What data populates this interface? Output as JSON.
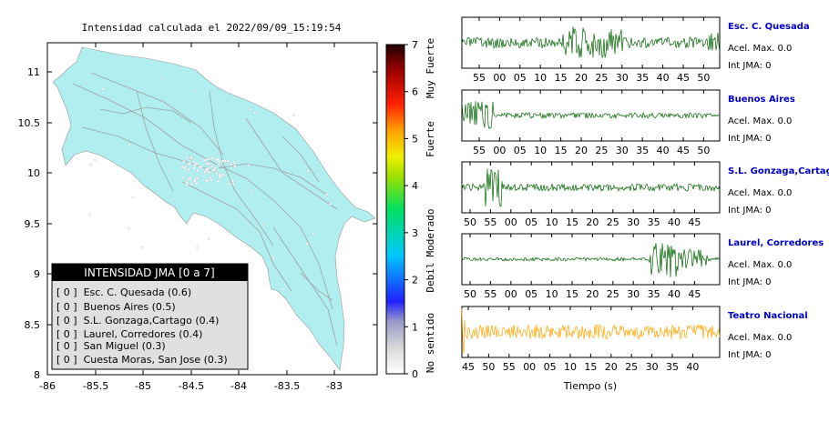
{
  "title": "Intensidad calculada el 2022/09/09_15:19:54",
  "map": {
    "x_ticks": [
      "-86",
      "-85.5",
      "-85",
      "-84.5",
      "-84",
      "-83.5",
      "-83"
    ],
    "y_ticks": [
      "11",
      "10.5",
      "10",
      "9.5",
      "9",
      "8.5",
      "8"
    ],
    "land_color": "#b0eef0",
    "legend": {
      "header": "INTENSIDAD JMA [0 a 7]",
      "items": [
        "[ 0 ]  Esc. C. Quesada (0.6)",
        "[ 0 ]  Buenos Aires (0.5)",
        "[ 0 ]  S.L. Gonzaga,Cartago (0.4)",
        "[ 0 ]  Laurel, Corredores (0.4)",
        "[ 0 ]  San Miguel (0.3)",
        "[ 0 ]  Cuesta Moras, San Jose (0.3)"
      ]
    }
  },
  "colorbar": {
    "ticks": [
      "7",
      "6",
      "5",
      "4",
      "3",
      "2",
      "1",
      "0"
    ],
    "labels": [
      "Muy Fuerte",
      "Fuerte",
      "Moderado",
      "Debil",
      "No sentido"
    ]
  },
  "waveforms": {
    "xlabel": "Tiempo (s)",
    "panels": [
      {
        "station": "Esc. C. Quesada",
        "accel": "Acel. Max. 0.0",
        "int": "Int JMA: 0",
        "ticks": [
          "55",
          "00",
          "05",
          "10",
          "15",
          "20",
          "25",
          "30",
          "35",
          "40",
          "45",
          "50"
        ],
        "color": "#006400"
      },
      {
        "station": "Buenos Aires",
        "accel": "Acel. Max. 0.0",
        "int": "Int JMA: 0",
        "ticks": [
          "55",
          "00",
          "05",
          "10",
          "15",
          "20",
          "25",
          "30",
          "35",
          "40",
          "45",
          "50"
        ],
        "color": "#006400"
      },
      {
        "station": "S.L. Gonzaga,Cartago",
        "accel": "Acel. Max. 0.0",
        "int": "Int JMA: 0",
        "ticks": [
          "50",
          "55",
          "00",
          "05",
          "10",
          "15",
          "20",
          "25",
          "30",
          "35",
          "40",
          "45"
        ],
        "color": "#006400"
      },
      {
        "station": "Laurel, Corredores",
        "accel": "Acel. Max. 0.0",
        "int": "Int JMA: 0",
        "ticks": [
          "50",
          "55",
          "00",
          "05",
          "10",
          "15",
          "20",
          "25",
          "30",
          "35",
          "40",
          "45"
        ],
        "color": "#006400"
      },
      {
        "station": "Teatro Nacional",
        "accel": "Acel. Max. 0.0",
        "int": "Int JMA: 0",
        "ticks": [
          "45",
          "50",
          "55",
          "00",
          "05",
          "10",
          "15",
          "20",
          "25",
          "30",
          "35",
          "40"
        ],
        "color": "#ffa500"
      }
    ]
  }
}
